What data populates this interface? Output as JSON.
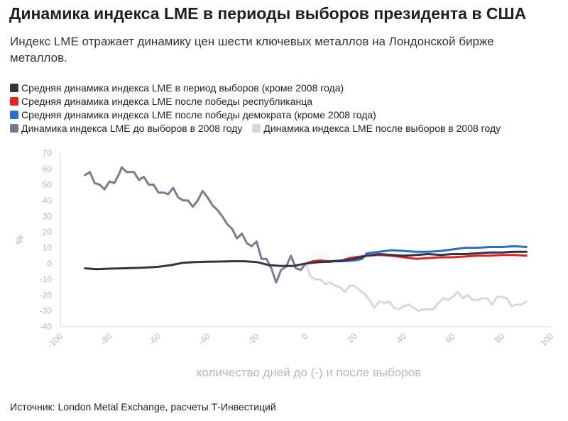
{
  "header": {
    "title": "Динамика индекса LME в периоды выборов президента в США",
    "subtitle": "Индекс LME отражает динамику цен шести ключевых металлов на Лондонской бирже металлов."
  },
  "source": "Источник: London Metal Exchange, расчеты Т-Инвестиций",
  "colors": {
    "avg": "#33343f",
    "rep": "#e32226",
    "dem": "#2f6ccd",
    "before2008": "#7b7a93",
    "after2008": "#d6d6e6"
  },
  "chart_data": {
    "type": "line",
    "title": "Динамика индекса LME в периоды выборов президента в США",
    "xlabel": "количество дней до (-) и после выборов",
    "ylabel": "%",
    "xlim": [
      -100,
      100
    ],
    "ylim": [
      -40,
      70
    ],
    "xticks": [
      "-100",
      "-80",
      "-60",
      "-40",
      "-20",
      "0",
      "20",
      "40",
      "60",
      "80",
      "100"
    ],
    "yticks": [
      "70",
      "60",
      "50",
      "40",
      "30",
      "20",
      "10",
      "0",
      "-10",
      "-20",
      "-30",
      "-40"
    ],
    "legend_position": "top-left",
    "series": [
      {
        "name": "Средняя динамика индекса LME в период выборов (кроме 2008 года)",
        "color": "#33343f",
        "x": [
          -90,
          -85,
          -80,
          -75,
          -70,
          -65,
          -60,
          -55,
          -50,
          -45,
          -40,
          -35,
          -30,
          -25,
          -20,
          -15,
          -10,
          -5,
          0,
          5,
          10,
          15,
          20,
          25,
          30,
          35,
          40,
          45,
          50,
          55,
          60,
          65,
          70,
          75,
          80,
          85,
          90
        ],
        "y": [
          -3,
          -3.5,
          -3.2,
          -3,
          -2.8,
          -2.5,
          -2,
          -1,
          0.5,
          1,
          1.2,
          1.3,
          1.5,
          1.5,
          1,
          -1,
          -1.5,
          -1.5,
          0,
          1,
          1.2,
          2,
          3,
          5,
          6,
          5.5,
          5,
          5.5,
          6,
          5.5,
          6,
          6,
          6.5,
          7,
          7,
          7.5,
          7.5
        ]
      },
      {
        "name": "Средняя динамика индекса LME после победы республиканца",
        "color": "#e32226",
        "x": [
          0,
          3,
          6,
          10,
          15,
          18,
          20,
          25,
          30,
          35,
          40,
          45,
          50,
          55,
          60,
          65,
          70,
          75,
          80,
          85,
          90
        ],
        "y": [
          0,
          1.5,
          2,
          1.5,
          2,
          3.5,
          4,
          5,
          5.5,
          5,
          4,
          3,
          3.5,
          4,
          4,
          4.5,
          5,
          5,
          5.5,
          5.5,
          5
        ]
      },
      {
        "name": "Средняя динамика индекса LME после победы демократа (кроме 2008 года)",
        "color": "#2f6ccd",
        "x": [
          0,
          3,
          6,
          10,
          15,
          20,
          23,
          25,
          30,
          35,
          40,
          45,
          50,
          55,
          60,
          65,
          70,
          75,
          80,
          85,
          90
        ],
        "y": [
          0,
          0.5,
          1,
          1.5,
          1.5,
          2,
          3,
          6.5,
          7.5,
          8.5,
          8,
          7.5,
          7.5,
          8,
          9,
          10,
          10,
          10.5,
          10.5,
          11,
          10.5
        ]
      },
      {
        "name": "Динамика индекса LME до выборов в 2008 году",
        "color": "#7b7a93",
        "x": [
          -90,
          -88,
          -86,
          -84,
          -82,
          -80,
          -78,
          -76,
          -75,
          -73,
          -70,
          -68,
          -66,
          -64,
          -62,
          -60,
          -58,
          -56,
          -54,
          -52,
          -50,
          -48,
          -46,
          -44,
          -42,
          -40,
          -38,
          -36,
          -34,
          -32,
          -30,
          -28,
          -26,
          -24,
          -22,
          -20,
          -18,
          -16,
          -14,
          -12,
          -10,
          -8,
          -6,
          -4,
          -2,
          0
        ],
        "y": [
          56,
          58,
          51,
          50,
          47,
          52,
          51,
          57,
          61,
          58,
          58,
          53,
          55,
          50,
          50,
          45,
          45,
          44,
          48,
          42,
          40,
          40,
          36,
          40,
          46,
          42,
          37,
          34,
          30,
          25,
          22,
          16,
          19,
          13,
          11,
          14,
          3,
          3,
          -3,
          -12,
          -4,
          -2,
          5,
          -3,
          -4,
          0
        ]
      },
      {
        "name": "Динамика индекса LME после выборов в 2008 году",
        "color": "#d6d6e6",
        "x": [
          0,
          2,
          4,
          6,
          8,
          10,
          12,
          14,
          16,
          18,
          20,
          22,
          24,
          26,
          28,
          30,
          32,
          34,
          36,
          38,
          40,
          42,
          44,
          46,
          48,
          50,
          52,
          54,
          56,
          58,
          60,
          62,
          64,
          66,
          68,
          70,
          72,
          74,
          76,
          78,
          80,
          82,
          84,
          86,
          88,
          90
        ],
        "y": [
          0,
          -8,
          -10,
          -10,
          -13,
          -12,
          -14,
          -15,
          -18,
          -14,
          -14,
          -17,
          -19,
          -23,
          -28,
          -24,
          -25,
          -24,
          -28,
          -29,
          -27,
          -26,
          -28,
          -30,
          -29,
          -29,
          -29,
          -25,
          -22,
          -23,
          -21,
          -18,
          -22,
          -20,
          -23,
          -23,
          -22,
          -22,
          -26,
          -21,
          -21,
          -22,
          -27,
          -26,
          -26,
          -24
        ]
      }
    ]
  }
}
